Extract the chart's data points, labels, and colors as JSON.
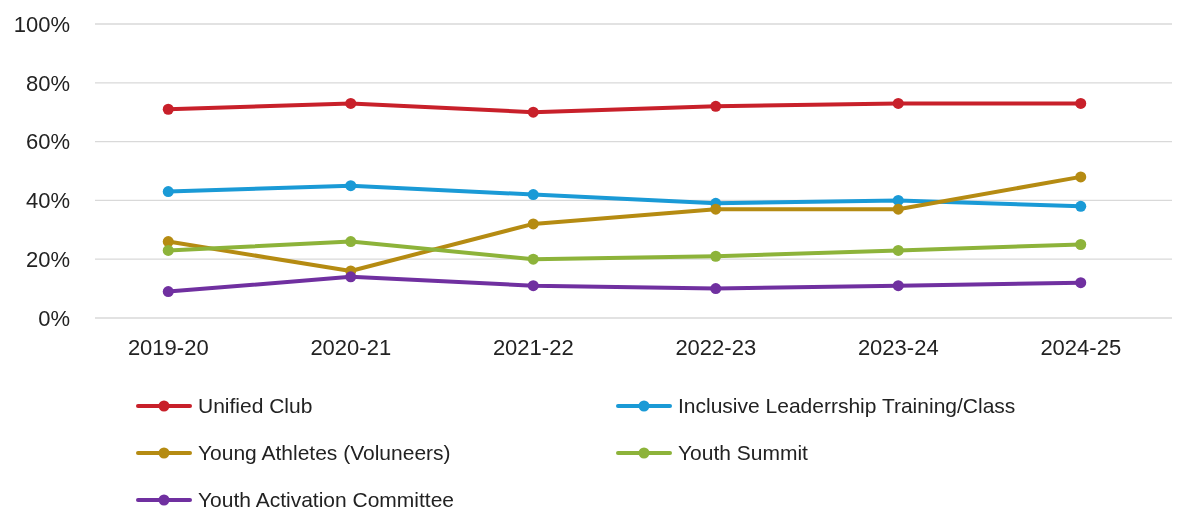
{
  "chart_data": {
    "type": "line",
    "categories": [
      "2019-20",
      "2020-21",
      "2021-22",
      "2022-23",
      "2023-24",
      "2024-25"
    ],
    "series": [
      {
        "name": "Unified Club",
        "color": "#c8202a",
        "values": [
          71,
          73,
          70,
          72,
          73,
          73
        ]
      },
      {
        "name": "Inclusive Leaderrship Training/Class",
        "color": "#1a9ad6",
        "values": [
          43,
          45,
          42,
          39,
          40,
          38
        ]
      },
      {
        "name": "Young Athletes (Voluneers)",
        "color": "#b58b12",
        "values": [
          26,
          16,
          32,
          37,
          37,
          48
        ]
      },
      {
        "name": "Youth Summit",
        "color": "#8db33a",
        "values": [
          23,
          26,
          20,
          21,
          23,
          25
        ]
      },
      {
        "name": "Youth Activation Committee",
        "color": "#7030a0",
        "values": [
          9,
          14,
          11,
          10,
          11,
          12
        ]
      }
    ],
    "ylim": [
      0,
      100
    ],
    "yticks": [
      {
        "value": 0,
        "label": "0%"
      },
      {
        "value": 20,
        "label": "20%"
      },
      {
        "value": 40,
        "label": "40%"
      },
      {
        "value": 60,
        "label": "60%"
      },
      {
        "value": 80,
        "label": "80%"
      },
      {
        "value": 100,
        "label": "100%"
      }
    ],
    "grid": "y",
    "legend": "bottom",
    "marker": "circle",
    "line_style": "solid"
  }
}
